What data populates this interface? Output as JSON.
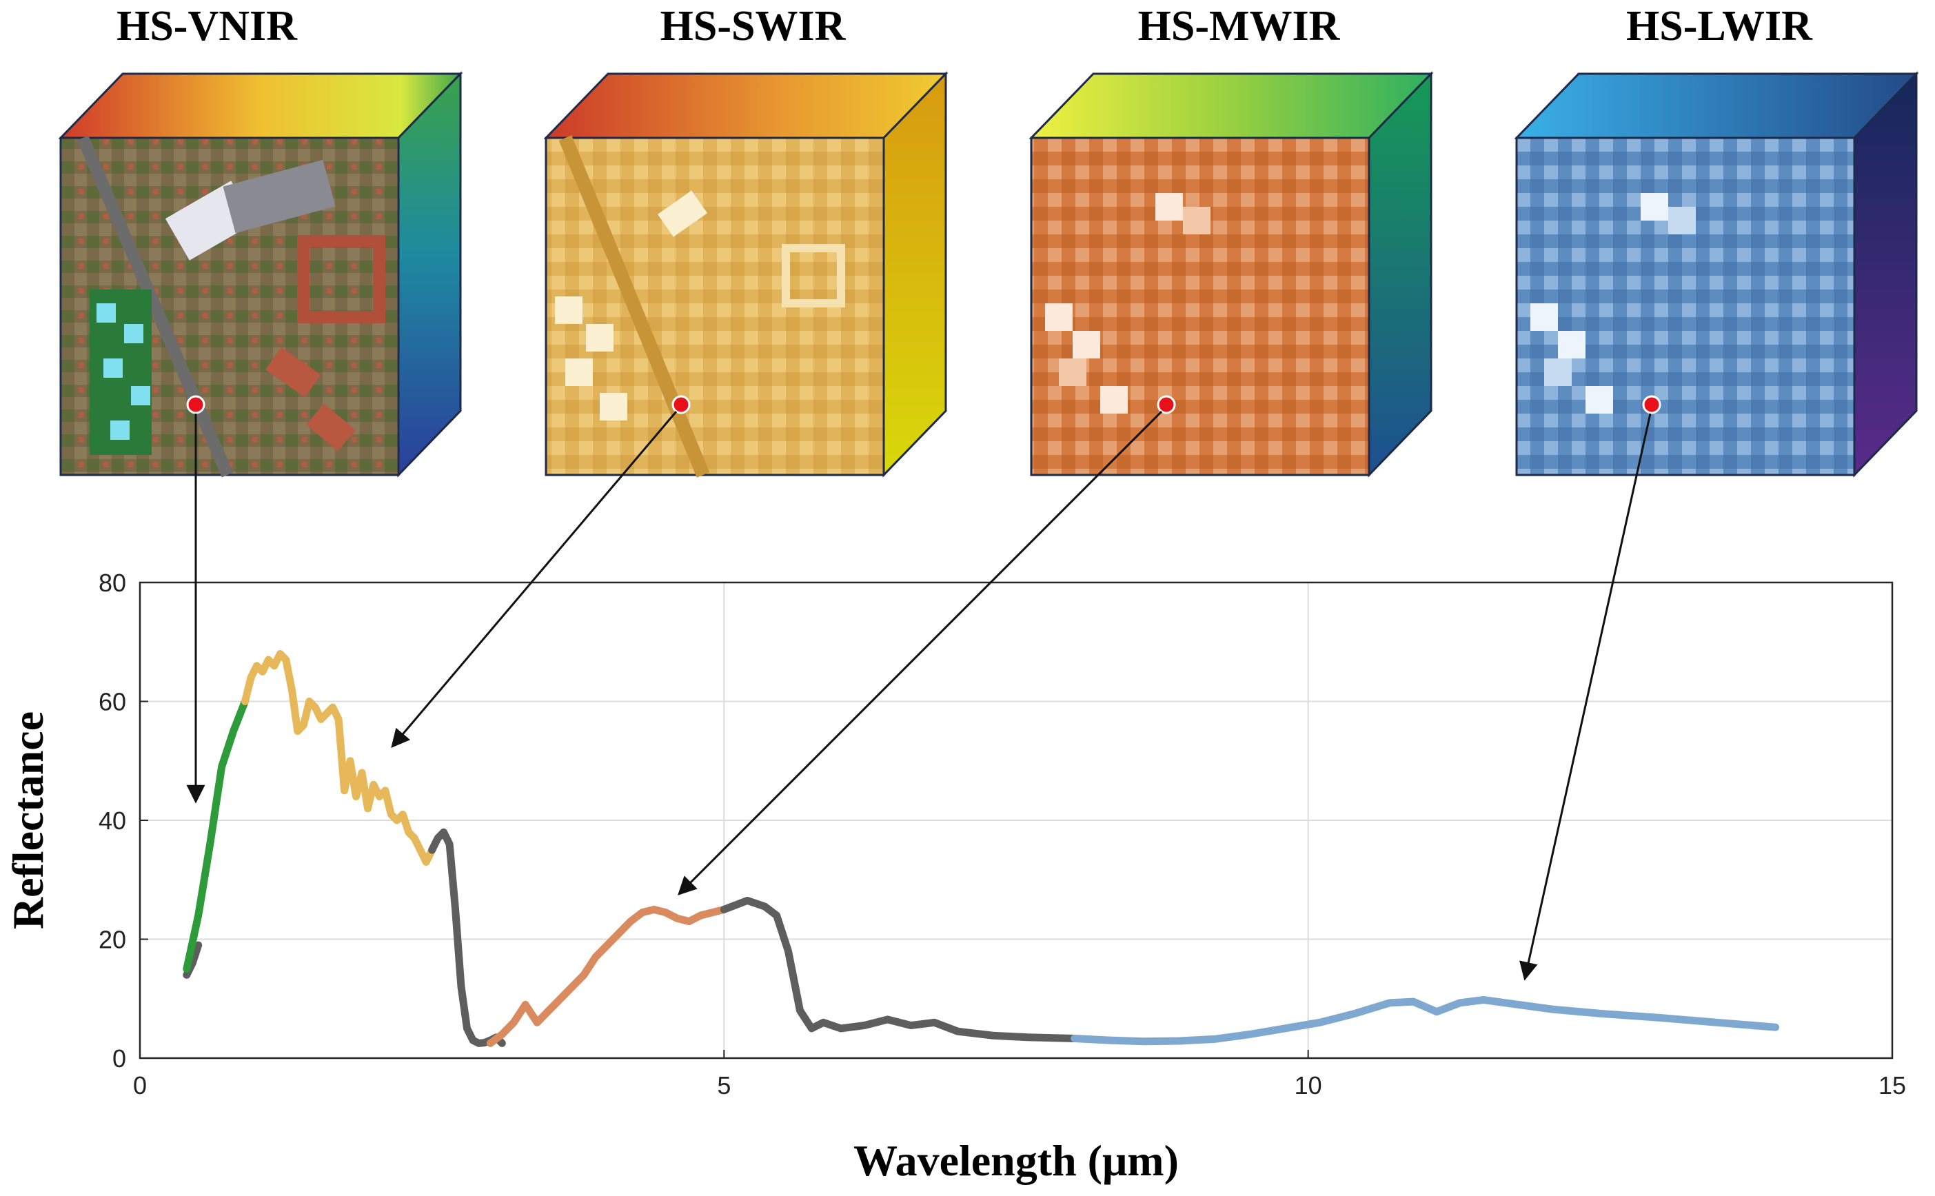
{
  "cubes": [
    {
      "title": "HS-VNIR",
      "color": "#2e9b3a"
    },
    {
      "title": "HS-SWIR",
      "color": "#e6b85a"
    },
    {
      "title": "HS-MWIR",
      "color": "#d98a5e"
    },
    {
      "title": "HS-LWIR",
      "color": "#7ea8d0"
    }
  ],
  "chart_data": {
    "type": "line",
    "xlabel": "Wavelength (μm)",
    "ylabel": "Reflectance",
    "xlim": [
      0,
      15
    ],
    "ylim": [
      0,
      80
    ],
    "xticks": [
      0,
      5,
      10,
      15
    ],
    "yticks": [
      0,
      20,
      40,
      60,
      80
    ],
    "grid": true,
    "series": [
      {
        "name": "gap",
        "color": "#5e5e5e",
        "x": [
          0.4,
          0.45,
          0.5
        ],
        "y": [
          14,
          16,
          19
        ]
      },
      {
        "name": "HS-VNIR",
        "color": "#2e9b3a",
        "x": [
          0.4,
          0.5,
          0.6,
          0.7,
          0.8,
          0.9
        ],
        "y": [
          15,
          24,
          36,
          49,
          55,
          60
        ]
      },
      {
        "name": "HS-SWIR",
        "color": "#e6b85a",
        "x": [
          0.9,
          0.95,
          1.0,
          1.05,
          1.1,
          1.15,
          1.2,
          1.25,
          1.3,
          1.35,
          1.4,
          1.45,
          1.5,
          1.55,
          1.6,
          1.65,
          1.7,
          1.75,
          1.8,
          1.85,
          1.9,
          1.95,
          2.0,
          2.05,
          2.1,
          2.15,
          2.2,
          2.25,
          2.3,
          2.35,
          2.4,
          2.45,
          2.5
        ],
        "y": [
          60,
          64,
          66,
          65,
          67,
          66,
          68,
          67,
          62,
          55,
          56,
          60,
          59,
          57,
          58,
          59,
          57,
          45,
          50,
          44,
          48,
          42,
          46,
          44,
          45,
          41,
          40,
          41,
          38,
          37,
          35,
          33,
          35
        ]
      },
      {
        "name": "gap",
        "color": "#5e5e5e",
        "x": [
          2.5,
          2.55,
          2.6,
          2.65,
          2.7,
          2.75,
          2.8,
          2.85,
          2.9,
          2.95,
          3.0,
          3.05,
          3.1
        ],
        "y": [
          35,
          37,
          38,
          36,
          25,
          12,
          5,
          3,
          2.5,
          2.6,
          3,
          3.5,
          2.5
        ]
      },
      {
        "name": "HS-MWIR",
        "color": "#d98a5e",
        "x": [
          3.0,
          3.1,
          3.2,
          3.3,
          3.4,
          3.5,
          3.6,
          3.7,
          3.8,
          3.9,
          4.0,
          4.1,
          4.2,
          4.3,
          4.4,
          4.5,
          4.6,
          4.7,
          4.8,
          4.9,
          5.0
        ],
        "y": [
          2.5,
          4,
          6,
          9,
          6,
          8,
          10,
          12,
          14,
          17,
          19,
          21,
          23,
          24.5,
          25,
          24.5,
          23.5,
          23,
          24,
          24.5,
          25
        ]
      },
      {
        "name": "gap",
        "color": "#5e5e5e",
        "x": [
          5.0,
          5.2,
          5.35,
          5.45,
          5.55,
          5.65,
          5.75,
          5.85,
          6.0,
          6.2,
          6.4,
          6.6,
          6.8,
          7.0,
          7.3,
          7.6,
          8.0
        ],
        "y": [
          25,
          26.5,
          25.5,
          24,
          18,
          8,
          5,
          6,
          5,
          5.5,
          6.5,
          5.5,
          6,
          4.5,
          3.8,
          3.5,
          3.3
        ]
      },
      {
        "name": "HS-LWIR",
        "color": "#7ea8d0",
        "x": [
          8.0,
          8.3,
          8.6,
          8.9,
          9.2,
          9.5,
          9.8,
          10.1,
          10.4,
          10.7,
          10.9,
          11.1,
          11.3,
          11.5,
          11.8,
          12.1,
          12.5,
          13.0,
          13.5,
          14.0
        ],
        "y": [
          3.3,
          3.0,
          2.8,
          2.9,
          3.2,
          4.0,
          5.0,
          6.0,
          7.5,
          9.3,
          9.5,
          7.8,
          9.3,
          9.8,
          9.0,
          8.2,
          7.5,
          6.8,
          6.0,
          5.2
        ]
      }
    ]
  }
}
